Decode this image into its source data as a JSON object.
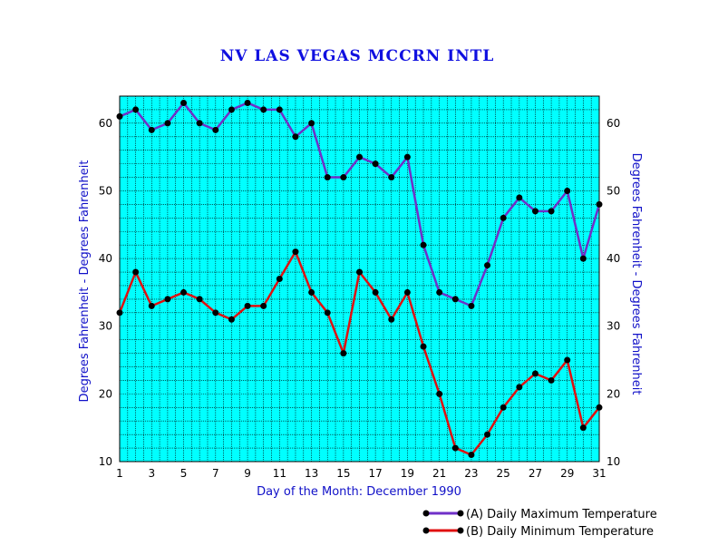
{
  "chart_data": {
    "type": "line",
    "title": "NV LAS VEGAS MCCRN INTL",
    "xlabel": "Day of the Month:  December 1990",
    "ylabel": "Degrees Fahrenheit  - Degrees Fahrenheit",
    "ylabel_right": "Degrees Fahrenheit  - Degrees Fahrenheit",
    "xlim": [
      1,
      31
    ],
    "ylim": [
      10,
      64
    ],
    "x_ticks": [
      1,
      3,
      5,
      7,
      9,
      11,
      13,
      15,
      17,
      19,
      21,
      23,
      25,
      27,
      29,
      31
    ],
    "y_ticks": [
      10,
      20,
      30,
      40,
      50,
      60
    ],
    "grid": true,
    "legend_position": "bottom-right",
    "background": "#00ffff",
    "x": [
      1,
      2,
      3,
      4,
      5,
      6,
      7,
      8,
      9,
      10,
      11,
      12,
      13,
      14,
      15,
      16,
      17,
      18,
      19,
      20,
      21,
      22,
      23,
      24,
      25,
      26,
      27,
      28,
      29,
      30,
      31
    ],
    "series": [
      {
        "name": "(A) Daily Maximum Temperature",
        "color": "#7030c8",
        "values": [
          61,
          62,
          59,
          60,
          63,
          60,
          59,
          62,
          63,
          62,
          62,
          58,
          60,
          52,
          52,
          55,
          54,
          52,
          55,
          42,
          35,
          34,
          33,
          39,
          46,
          49,
          47,
          47,
          50,
          40,
          48
        ]
      },
      {
        "name": "(B) Daily Minimum Temperature",
        "color": "#e01010",
        "values": [
          32,
          38,
          33,
          34,
          35,
          34,
          32,
          31,
          33,
          33,
          37,
          41,
          35,
          32,
          26,
          38,
          35,
          31,
          35,
          27,
          20,
          12,
          11,
          14,
          18,
          21,
          23,
          22,
          25,
          15,
          18
        ]
      }
    ]
  }
}
